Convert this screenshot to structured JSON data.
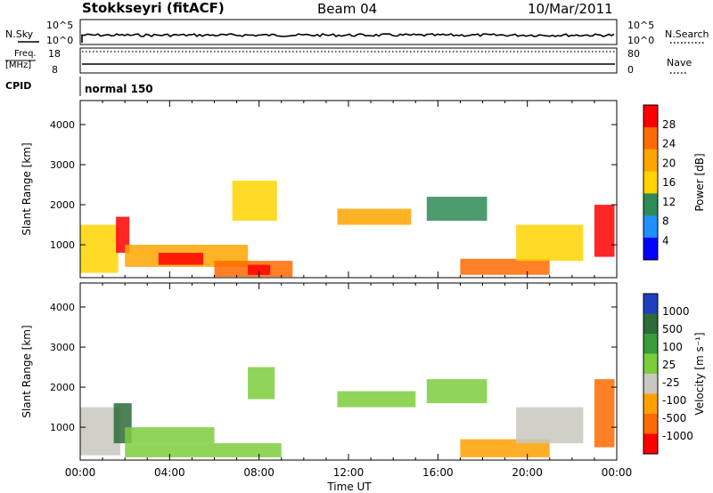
{
  "header": {
    "station": "Stokkseyri (fitACF)",
    "beam": "Beam 04",
    "date": "10/Mar/2011"
  },
  "strips": {
    "nsky_label": "N.Sky",
    "nsearch_label": "N.Search",
    "freq_label_1": "Freq.",
    "freq_label_2": "[MHz]",
    "nave_label": "Nave",
    "cpid_label": "CPID",
    "cpid_value": "normal 150",
    "nsky_ticks": [
      "10^5",
      "10^0"
    ],
    "nsearch_ticks": [
      "10^5",
      "10^0"
    ],
    "freq_ticks": [
      "18",
      "8"
    ],
    "nave_ticks": [
      "80",
      "0"
    ]
  },
  "colorbars": {
    "power": {
      "label": "Power [dB]",
      "ticks": [
        "28",
        "24",
        "20",
        "16",
        "12",
        "8",
        "4"
      ],
      "colors": [
        "#ff0000",
        "#ff6a00",
        "#ffa500",
        "#ffd400",
        "#2e8b57",
        "#1e90ff",
        "#0000ff"
      ]
    },
    "velocity": {
      "label": "Velocity [m s⁻¹]",
      "ticks": [
        "1000",
        "500",
        "100",
        "25",
        "-25",
        "-100",
        "-500",
        "-1000"
      ],
      "colors": [
        "#1f3fbf",
        "#2e6b3a",
        "#3a9b3a",
        "#7ccd3c",
        "#c8c8c0",
        "#ffa000",
        "#ff6a00",
        "#ff0000"
      ]
    }
  },
  "chart_data": [
    {
      "type": "heatmap",
      "title": "",
      "xlabel": "Time UT",
      "ylabel": "Slant Range [km]",
      "x_ticks": [
        "00:00",
        "04:00",
        "08:00",
        "12:00",
        "16:00",
        "20:00",
        "00:00"
      ],
      "y_ticks": [
        "4000",
        "3000",
        "2000",
        "1000"
      ],
      "ylim": [
        180,
        4600
      ],
      "xlim_hours": [
        0,
        24
      ],
      "colorbar": "Power [dB]",
      "value_range": [
        0,
        30
      ],
      "regions": [
        {
          "t0": 0.0,
          "t1": 1.7,
          "r0": 300,
          "r1": 1500,
          "value": 14
        },
        {
          "t0": 1.6,
          "t1": 2.2,
          "r0": 800,
          "r1": 1700,
          "value": 26
        },
        {
          "t0": 2.0,
          "t1": 7.5,
          "r0": 450,
          "r1": 1000,
          "value": 18
        },
        {
          "t0": 3.5,
          "t1": 5.5,
          "r0": 500,
          "r1": 800,
          "value": 27
        },
        {
          "t0": 6.0,
          "t1": 9.5,
          "r0": 200,
          "r1": 600,
          "value": 22
        },
        {
          "t0": 7.5,
          "t1": 8.5,
          "r0": 250,
          "r1": 500,
          "value": 28
        },
        {
          "t0": 6.8,
          "t1": 8.8,
          "r0": 1600,
          "r1": 2600,
          "value": 14
        },
        {
          "t0": 11.5,
          "t1": 14.8,
          "r0": 1500,
          "r1": 1900,
          "value": 18
        },
        {
          "t0": 15.5,
          "t1": 18.2,
          "r0": 1600,
          "r1": 2200,
          "value": 12
        },
        {
          "t0": 17.0,
          "t1": 21.0,
          "r0": 250,
          "r1": 650,
          "value": 24
        },
        {
          "t0": 19.5,
          "t1": 22.5,
          "r0": 600,
          "r1": 1500,
          "value": 14
        },
        {
          "t0": 23.0,
          "t1": 23.9,
          "r0": 700,
          "r1": 2000,
          "value": 26
        }
      ]
    },
    {
      "type": "heatmap",
      "title": "",
      "xlabel": "Time UT",
      "ylabel": "Slant Range [km]",
      "x_ticks": [
        "00:00",
        "04:00",
        "08:00",
        "12:00",
        "16:00",
        "20:00",
        "00:00"
      ],
      "y_ticks": [
        "4000",
        "3000",
        "2000",
        "1000"
      ],
      "ylim": [
        180,
        4600
      ],
      "xlim_hours": [
        0,
        24
      ],
      "colorbar": "Velocity [m s⁻¹]",
      "value_range": [
        -1000,
        1000
      ],
      "regions": [
        {
          "t0": 0.0,
          "t1": 1.8,
          "r0": 300,
          "r1": 1500,
          "value": -200
        },
        {
          "t0": 1.5,
          "t1": 2.3,
          "r0": 600,
          "r1": 1600,
          "value": 600
        },
        {
          "t0": 2.0,
          "t1": 6.0,
          "r0": 600,
          "r1": 1000,
          "value": 0
        },
        {
          "t0": 2.0,
          "t1": 9.0,
          "r0": 250,
          "r1": 600,
          "value": 60
        },
        {
          "t0": 7.5,
          "t1": 8.7,
          "r0": 1700,
          "r1": 2500,
          "value": 0
        },
        {
          "t0": 11.5,
          "t1": 15.0,
          "r0": 1500,
          "r1": 1900,
          "value": 0
        },
        {
          "t0": 15.5,
          "t1": 18.2,
          "r0": 1600,
          "r1": 2200,
          "value": 0
        },
        {
          "t0": 17.0,
          "t1": 21.0,
          "r0": 250,
          "r1": 700,
          "value": -300
        },
        {
          "t0": 19.5,
          "t1": 22.5,
          "r0": 600,
          "r1": 1500,
          "value": -200
        },
        {
          "t0": 23.0,
          "t1": 23.9,
          "r0": 500,
          "r1": 2200,
          "value": -700
        }
      ]
    }
  ]
}
